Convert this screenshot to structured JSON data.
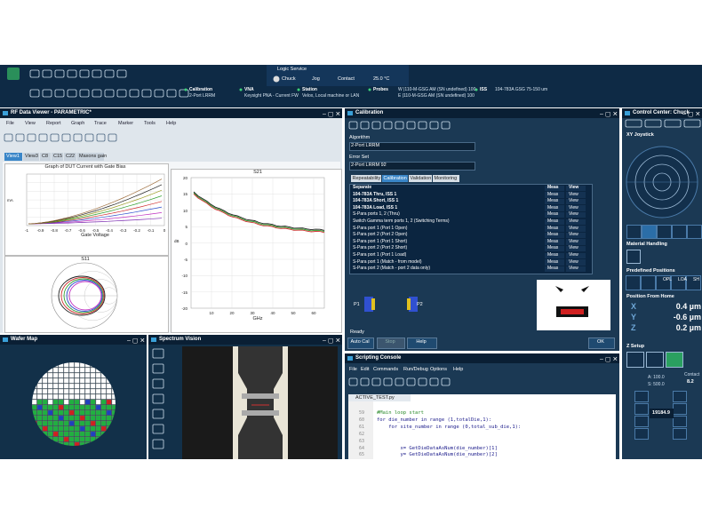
{
  "toolbar": {
    "logic_service": "Logic Service",
    "chuck": "Chuck",
    "jog": "Jog",
    "contact": "Contact",
    "temperature": "25.0 °C",
    "status": [
      {
        "label": "Calibration",
        "lines": [
          "2-Port LRRM"
        ]
      },
      {
        "label": "VNA",
        "lines": [
          "Keysight PNA - Current FW"
        ]
      },
      {
        "label": "Station",
        "lines": [
          "Velox, Local machine or LAN"
        ]
      },
      {
        "label": "Probes",
        "lines": [
          "W |110-M-GSG AM (SN undefined) 100",
          "E |110-M-GSG AM (SN undefined) 100"
        ]
      },
      {
        "label": "ISS",
        "lines": [
          "104-783A GSG 75-150 um"
        ]
      }
    ]
  },
  "rf_viewer": {
    "title": "RF Data Viewer - PARAMETRIC*",
    "menu": [
      "File",
      "View",
      "Report",
      "Graph",
      "Trace",
      "Marker",
      "Tools",
      "Help"
    ],
    "tabs": [
      "View1",
      "View3",
      "C8",
      "C15",
      "C22",
      "Maxons gain"
    ],
    "graph1": {
      "title": "Graph of DUT Current with Gate Bias",
      "y_label": "mA",
      "x_label": "Gate Voltage",
      "xticks": [
        "-1",
        "-0.9",
        "-0.8",
        "-0.7",
        "-0.6",
        "-0.5",
        "-0.4",
        "-0.3",
        "-0.2",
        "-0.1",
        "0"
      ]
    },
    "s21": {
      "title": "S21",
      "y_label": "dB",
      "x_label": "GHz",
      "yticks": [
        "20",
        "15",
        "10",
        "5",
        "0",
        "-5",
        "-10",
        "-15",
        "-20"
      ],
      "xticks": [
        "10",
        "20",
        "30",
        "40",
        "50",
        "60"
      ]
    },
    "s11": {
      "title": "S11"
    }
  },
  "wafer_map": {
    "title": "Wafer Map"
  },
  "spectrum_vision": {
    "title": "Spectrum Vision"
  },
  "calibration": {
    "title": "Calibration",
    "algorithm_label": "Algorithm",
    "algorithm": "2-Port LRRM",
    "error_set_label": "Error Set",
    "error_set": "2-Port LRRM 92",
    "tabs": [
      "Repeatability",
      "Calibration",
      "Validation",
      "Monitoring"
    ],
    "columns": [
      "Meas",
      "View"
    ],
    "rows": [
      "Separate",
      "104-783A Thru, ISS 1",
      "104-783A Short, ISS 1",
      "104-783A Load, ISS 1",
      "S-Para ports 1, 2 (Thru)",
      "Switch Gamma term ports 1, 2 (Switching Terms)",
      "S-Para port 1 (Port 1 Open)",
      "S-Para port 2 (Port 2 Open)",
      "S-Para port 1 (Port 1 Short)",
      "S-Para port 2 (Port 2 Short)",
      "S-Para port 1 (Port 1 Load)",
      "S-Para port 1 (Match - from model)",
      "S-Para port 2 (Match - port 2 data only)"
    ],
    "ports": [
      "P1",
      "P2"
    ],
    "status": "Ready",
    "buttons": [
      "Auto Cal",
      "Stop",
      "Help",
      "OK"
    ]
  },
  "scripting_console": {
    "title": "Scripting Console",
    "menu": [
      "File",
      "Edit",
      "Commands",
      "Run/Debug",
      "Options",
      "Help"
    ],
    "file_tab": "ACTIVE_TEST.py",
    "code": [
      {
        "line": 59,
        "text": "#Main loop start"
      },
      {
        "line": 60,
        "text": "for die_number in range (1,totalDie,1):"
      },
      {
        "line": 61,
        "text": "    for site_number in range (0,total_sub_die,1):"
      },
      {
        "line": 62
      },
      {
        "line": 63
      },
      {
        "line": 64,
        "text": "        x= GetDieDataAsNum(die_number)[1]"
      },
      {
        "line": 65,
        "text": "        y= GetDieDataAsNum(die_number)[2]"
      }
    ]
  },
  "control_center": {
    "title": "Control Center: Chuck",
    "xy_joystick": "XY Joystick",
    "material_handling": "Material Handling",
    "predefined_positions": "Predefined Positions",
    "positions": [
      "OPL",
      "LOA",
      "SH"
    ],
    "position_from_home": "Position From Home",
    "coords": [
      {
        "axis": "X",
        "value": "0.4 µm"
      },
      {
        "axis": "Y",
        "value": "-0.6 µm"
      },
      {
        "axis": "Z",
        "value": "0.2 µm"
      }
    ],
    "z_setup": "Z Setup",
    "a": "A: 100.0",
    "s": "S: 500.0",
    "contact_label": "Contact",
    "contact_value": "8.2",
    "height": "19184.9"
  }
}
